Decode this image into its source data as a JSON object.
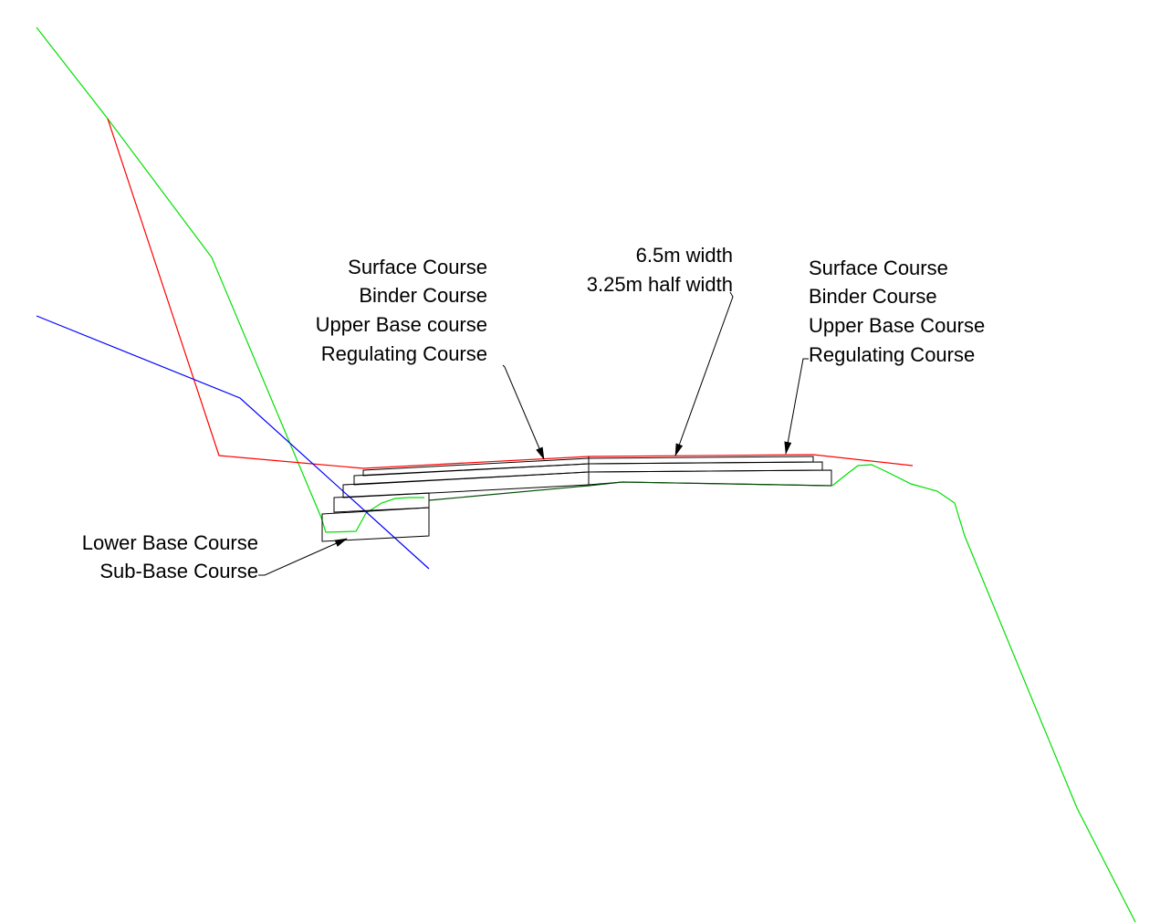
{
  "colors": {
    "existing_ground": "#00e000",
    "design_surface": "#ff0000",
    "cut_line": "#0000ff",
    "layers": "#000000",
    "subgrade": "#004d00",
    "background": "#ffffff"
  },
  "labels": {
    "left_group": [
      "Surface Course",
      "Binder Course",
      "Upper Base course",
      "Regulating Course"
    ],
    "center_group": [
      "6.5m width",
      "3.25m half width"
    ],
    "right_group": [
      "Surface Course",
      "Binder Course",
      "Upper Base Course",
      "Regulating Course"
    ],
    "bottom_left_group": [
      "Lower Base Course",
      "Sub-Base Course"
    ]
  }
}
